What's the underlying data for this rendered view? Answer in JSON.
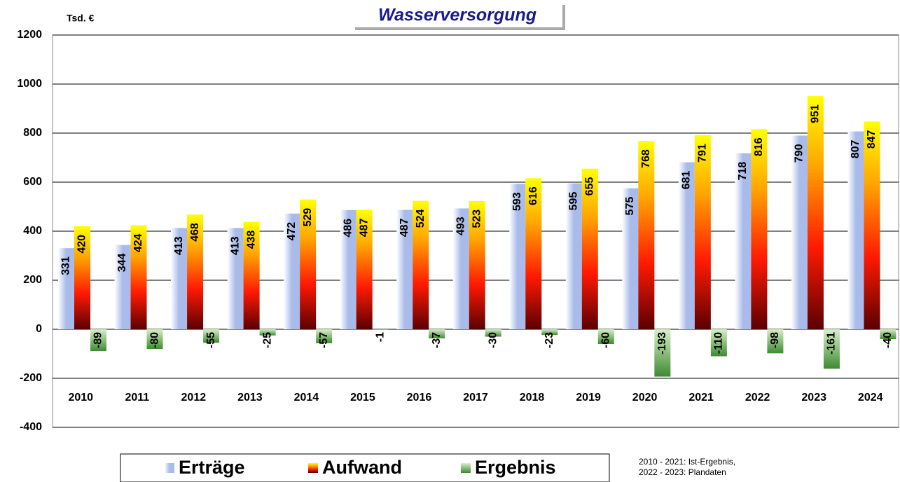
{
  "chart_data": {
    "type": "bar",
    "title": "Wasserversorgung",
    "y_label": "Tsd. €",
    "categories": [
      "2010",
      "2011",
      "2012",
      "2013",
      "2014",
      "2015",
      "2016",
      "2017",
      "2018",
      "2019",
      "2020",
      "2021",
      "2022",
      "2023",
      "2024"
    ],
    "series": [
      {
        "name": "Erträge",
        "color": "#a9bbea",
        "values": [
          331,
          344,
          413,
          413,
          472,
          486,
          487,
          493,
          593,
          595,
          575,
          681,
          718,
          790,
          807
        ]
      },
      {
        "name": "Aufwand",
        "color": "#ff1a00",
        "values": [
          420,
          424,
          468,
          438,
          529,
          487,
          524,
          523,
          616,
          655,
          768,
          791,
          816,
          951,
          847
        ]
      },
      {
        "name": "Ergebnis",
        "color": "#3e8a32",
        "values": [
          -89,
          -80,
          -55,
          -25,
          -57,
          -1,
          -37,
          -30,
          -23,
          -60,
          -193,
          -110,
          -98,
          -161,
          -40
        ]
      }
    ],
    "ylim": [
      -400,
      1200
    ],
    "yticks": [
      -400,
      -200,
      0,
      200,
      400,
      600,
      800,
      1000,
      1200
    ],
    "grid": true,
    "annotations": [
      "2010 - 2021: Ist-Ergebnis,",
      "2022 - 2023: Plandaten"
    ]
  }
}
